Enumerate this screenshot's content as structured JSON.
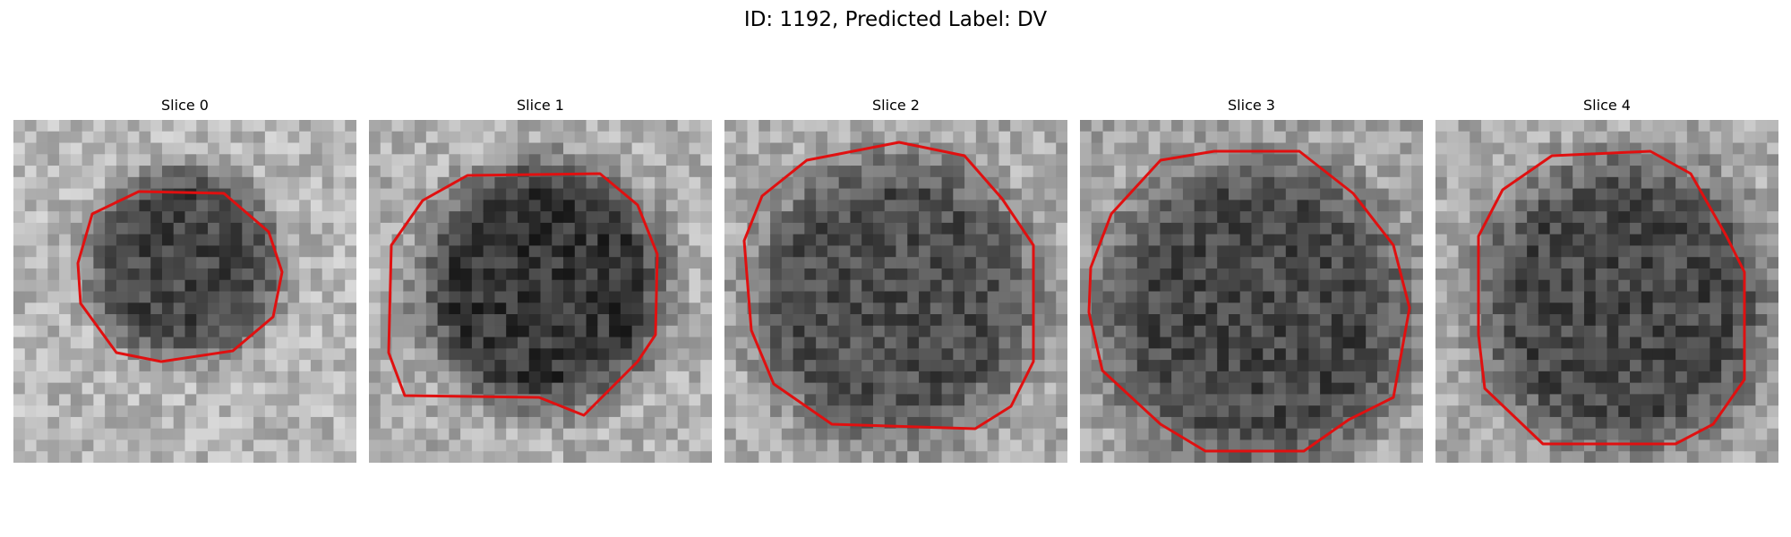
{
  "figure": {
    "title": "ID: 1192, Predicted Label: DV"
  },
  "colors": {
    "contour": "#ff0000",
    "background": "#ffffff"
  },
  "slices": [
    {
      "title": "Slice 0"
    },
    {
      "title": "Slice 1"
    },
    {
      "title": "Slice 2"
    },
    {
      "title": "Slice 3"
    },
    {
      "title": "Slice 4"
    }
  ]
}
